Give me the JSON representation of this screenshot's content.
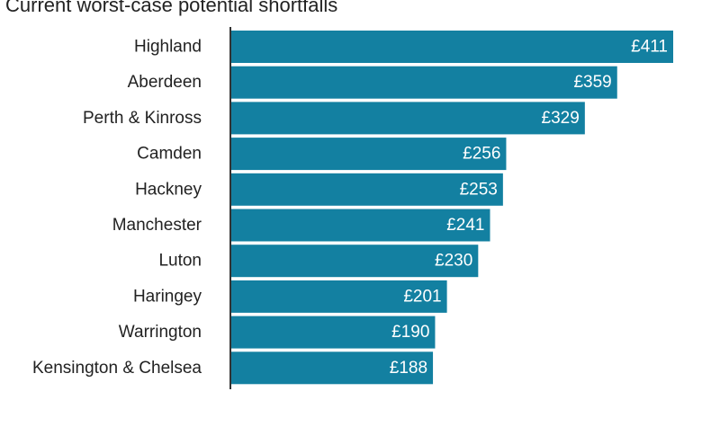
{
  "chart_data": {
    "type": "bar",
    "orientation": "horizontal",
    "title": "Current worst-case potential shortfalls",
    "categories": [
      "Highland",
      "Aberdeen",
      "Perth & Kinross",
      "Camden",
      "Hackney",
      "Manchester",
      "Luton",
      "Haringey",
      "Warrington",
      "Kensington & Chelsea"
    ],
    "values": [
      411,
      359,
      329,
      256,
      253,
      241,
      230,
      201,
      190,
      188
    ],
    "value_labels": [
      "£411",
      "£359",
      "£329",
      "£256",
      "£253",
      "£241",
      "£230",
      "£201",
      "£190",
      "£188"
    ],
    "xlim": [
      0,
      411
    ],
    "grid": false,
    "legend": "none",
    "bar_color": "#1380a1",
    "axis_color": "#333333"
  }
}
